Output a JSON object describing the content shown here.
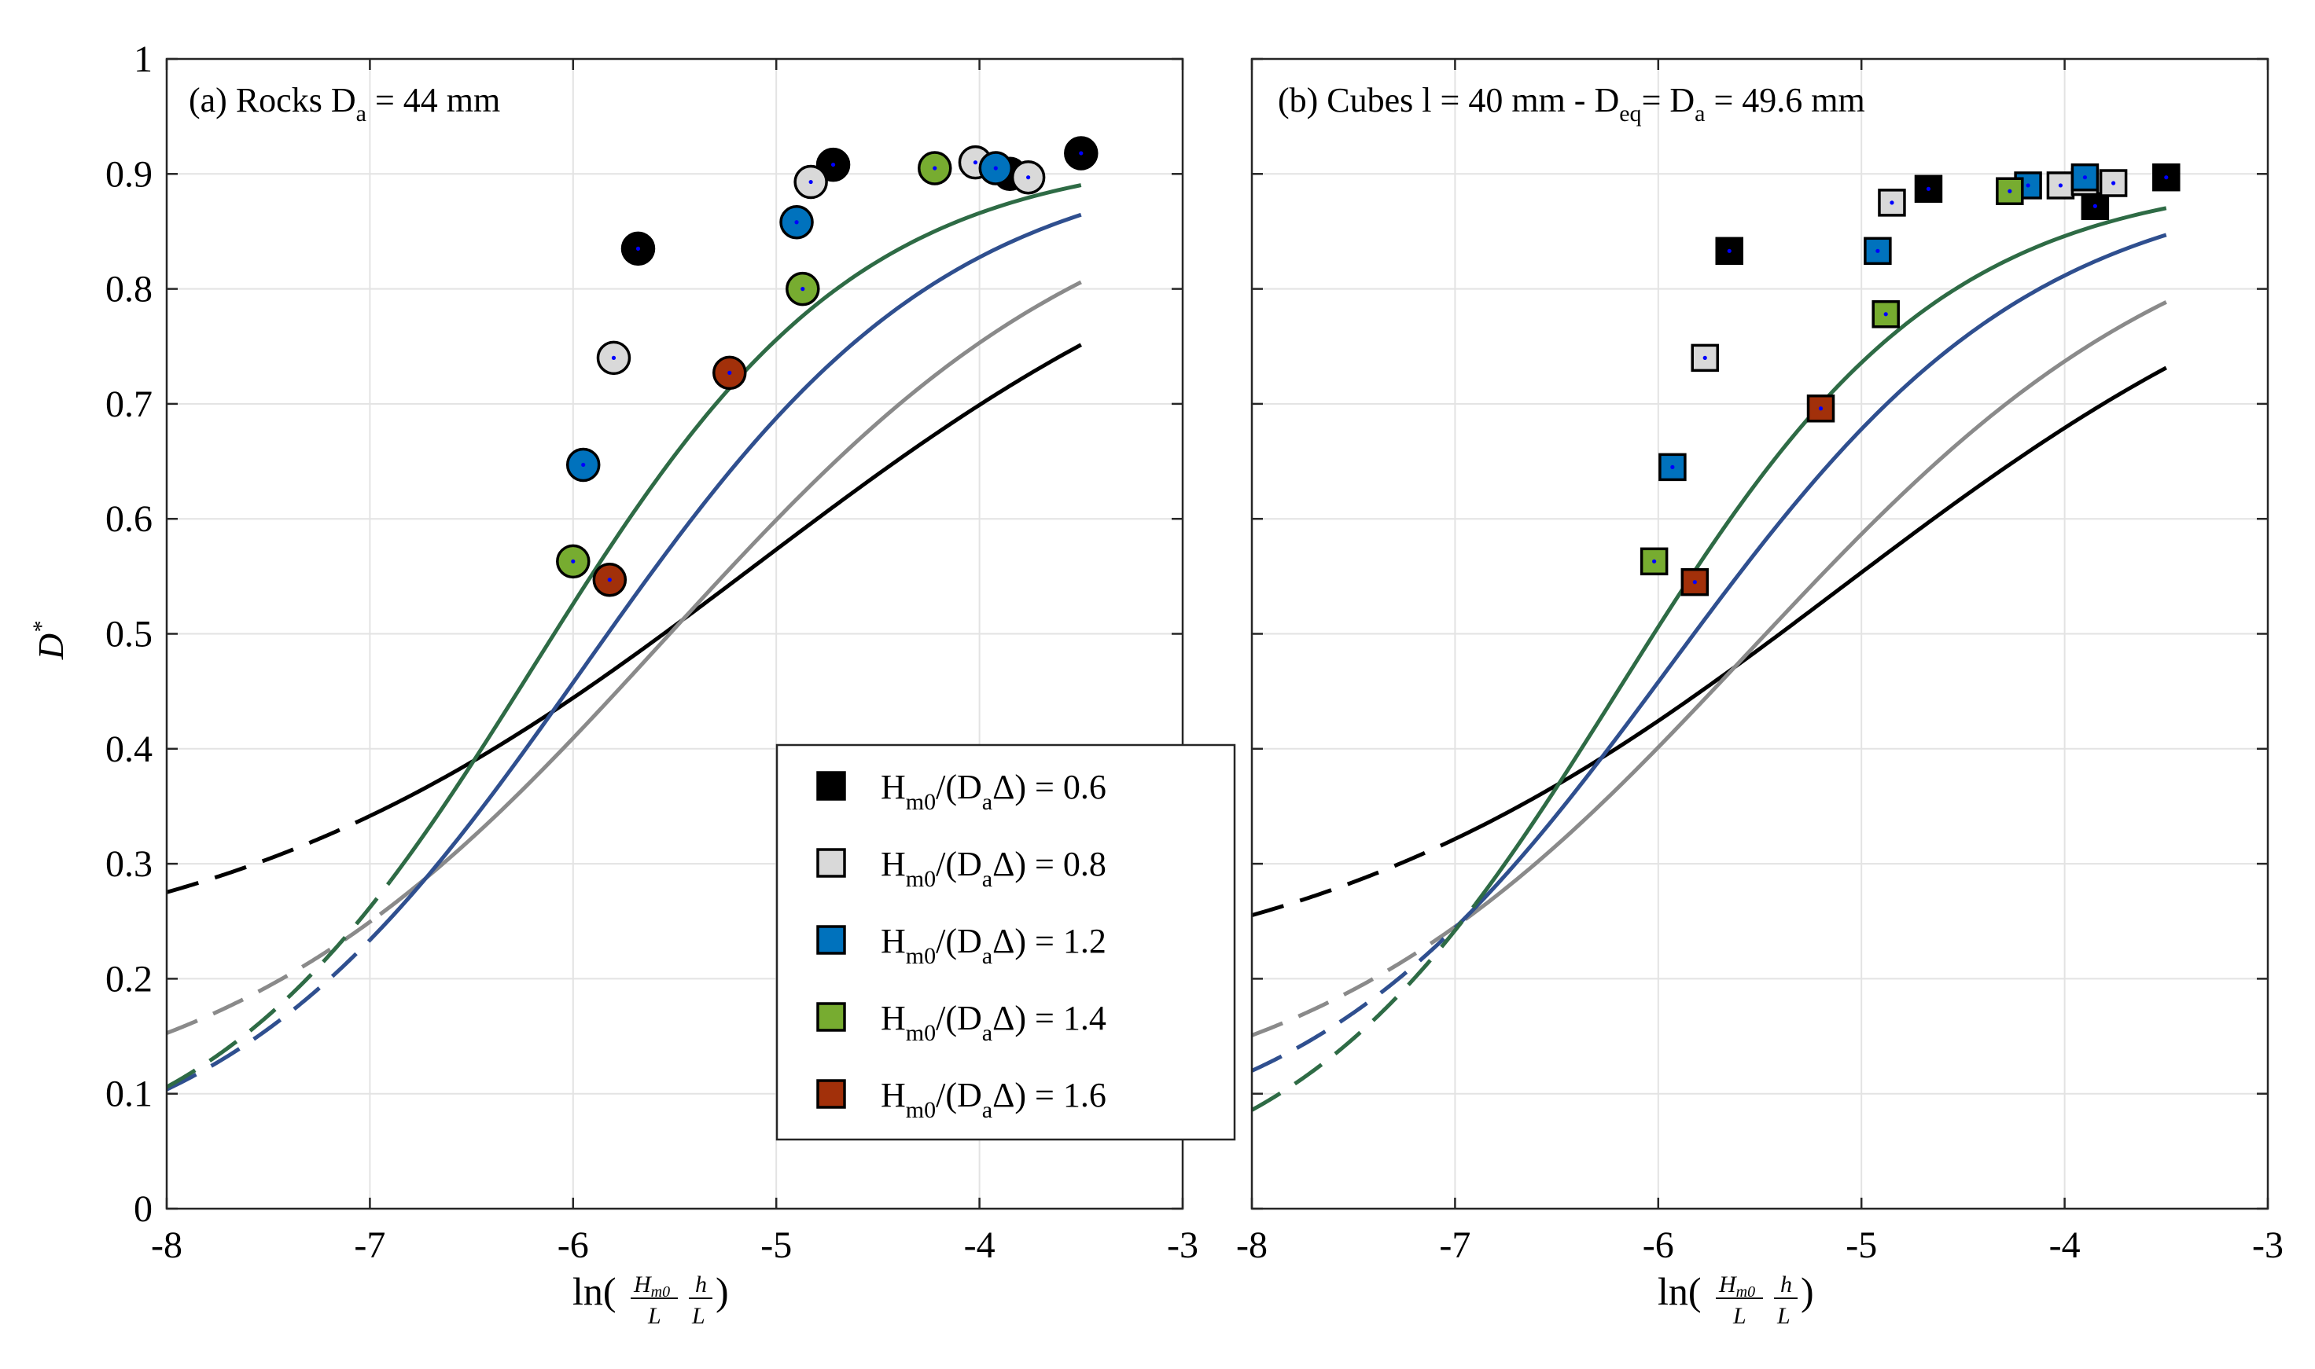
{
  "chart_data": [
    {
      "type": "scatter",
      "panel_id": "a",
      "title": {
        "prefix": "(a) Rocks D",
        "sub": "a",
        "suffix": " = 44 mm"
      },
      "xlabel": "ln(Hm0/L · h/L)",
      "ylabel": "D*",
      "xlim": [
        -8,
        -3
      ],
      "ylim": [
        0,
        1
      ],
      "xticks": [
        -8,
        -7,
        -6,
        -5,
        -4,
        -3
      ],
      "yticks": [
        0,
        0.1,
        0.2,
        0.3,
        0.4,
        0.5,
        0.6,
        0.7,
        0.8,
        0.9,
        1
      ],
      "grid": true,
      "marker": "circle",
      "series": [
        {
          "key": "s06",
          "name": "Hm0/(DaΔ) = 0.6",
          "x": [
            -5.68,
            -4.72,
            -3.85,
            -3.5
          ],
          "y": [
            0.835,
            0.908,
            0.9,
            0.918
          ],
          "curve": {
            "a": 0.92,
            "b": 0.72,
            "c": 5.1,
            "w": 1.35,
            "solid_from": -7.0
          }
        },
        {
          "key": "s08",
          "name": "Hm0/(DaΔ) = 0.8",
          "x": [
            -5.8,
            -4.83,
            -4.02,
            -3.76
          ],
          "y": [
            0.74,
            0.893,
            0.91,
            0.897
          ],
          "curve": {
            "a": 0.92,
            "b": 0.85,
            "c": 5.55,
            "w": 1.1,
            "solid_from": -6.95
          }
        },
        {
          "key": "s12",
          "name": "Hm0/(DaΔ) = 1.2",
          "x": [
            -5.95,
            -4.9,
            -3.92
          ],
          "y": [
            0.647,
            0.858,
            0.905
          ],
          "curve": {
            "a": 0.92,
            "b": 0.9,
            "c": 5.95,
            "w": 0.9,
            "solid_from": -7.0
          }
        },
        {
          "key": "s14",
          "name": "Hm0/(DaΔ) = 1.4",
          "x": [
            -6.0,
            -4.87,
            -4.22
          ],
          "y": [
            0.563,
            0.8,
            0.905
          ],
          "curve": {
            "a": 0.92,
            "b": 0.9,
            "c": 6.2,
            "w": 0.8,
            "solid_from": -6.9
          }
        },
        {
          "key": "s16",
          "name": "Hm0/(DaΔ) = 1.6",
          "x": [
            -5.82,
            -5.23
          ],
          "y": [
            0.547,
            0.727
          ],
          "curve": null
        }
      ]
    },
    {
      "type": "scatter",
      "panel_id": "b",
      "title": {
        "prefix": "(b) Cubes l = 40 mm - D",
        "sub1": "eq",
        "mid": "= D",
        "sub2": "a",
        "suffix": " = 49.6 mm"
      },
      "xlabel": "ln(Hm0/L · h/L)",
      "ylabel": "",
      "xlim": [
        -8,
        -3
      ],
      "ylim": [
        0,
        1
      ],
      "xticks": [
        -8,
        -7,
        -6,
        -5,
        -4,
        -3
      ],
      "yticks": [
        0,
        0.1,
        0.2,
        0.3,
        0.4,
        0.5,
        0.6,
        0.7,
        0.8,
        0.9,
        1
      ],
      "grid": true,
      "marker": "square",
      "series": [
        {
          "key": "s06",
          "name": "Hm0/(DaΔ) = 0.6",
          "x": [
            -5.65,
            -4.67,
            -3.85,
            -3.5
          ],
          "y": [
            0.833,
            0.887,
            0.872,
            0.897
          ],
          "curve": {
            "a": 0.9,
            "b": 0.72,
            "c": 5.1,
            "w": 1.35,
            "solid_from": -7.0
          }
        },
        {
          "key": "s08",
          "name": "Hm0/(DaΔ) = 0.8",
          "x": [
            -5.77,
            -4.85,
            -4.02,
            -3.9,
            -3.76
          ],
          "y": [
            0.74,
            0.875,
            0.89,
            0.893,
            0.892
          ],
          "curve": {
            "a": 0.9,
            "b": 0.83,
            "c": 5.55,
            "w": 1.1,
            "solid_from": -6.95
          }
        },
        {
          "key": "s12",
          "name": "Hm0/(DaΔ) = 1.2",
          "x": [
            -5.93,
            -4.92,
            -4.18,
            -3.9
          ],
          "y": [
            0.645,
            0.833,
            0.89,
            0.897
          ],
          "curve": {
            "a": 0.9,
            "b": 0.86,
            "c": 5.95,
            "w": 0.9,
            "solid_from": -7.0
          }
        },
        {
          "key": "s14",
          "name": "Hm0/(DaΔ) = 1.4",
          "x": [
            -6.02,
            -4.88,
            -4.27
          ],
          "y": [
            0.563,
            0.778,
            0.885
          ],
          "curve": {
            "a": 0.9,
            "b": 0.9,
            "c": 6.2,
            "w": 0.8,
            "solid_from": -6.9
          }
        },
        {
          "key": "s16",
          "name": "Hm0/(DaΔ) = 1.6",
          "x": [
            -5.82,
            -5.2
          ],
          "y": [
            0.545,
            0.696
          ],
          "curve": null
        }
      ]
    }
  ],
  "colors": {
    "s06": {
      "fill": "#000000",
      "line": "#000000"
    },
    "s08": {
      "fill": "#d9d9d9",
      "line": "#8a8a8a"
    },
    "s12": {
      "fill": "#0072bd",
      "line": "#2f4f8f"
    },
    "s14": {
      "fill": "#77ac30",
      "line": "#2e6b45"
    },
    "s16": {
      "fill": "#a2300a",
      "line": "#a2300a"
    },
    "grid": "#e3e3e3",
    "center_dot": "#0000ff"
  },
  "legend": {
    "entries": [
      {
        "key": "s06",
        "main": "H",
        "sub1": "m0",
        "mid": "/(D",
        "sub2": "a",
        "tail": "Δ)  =  0.6"
      },
      {
        "key": "s08",
        "main": "H",
        "sub1": "m0",
        "mid": "/(D",
        "sub2": "a",
        "tail": "Δ)  =  0.8"
      },
      {
        "key": "s12",
        "main": "H",
        "sub1": "m0",
        "mid": "/(D",
        "sub2": "a",
        "tail": "Δ)  =  1.2"
      },
      {
        "key": "s14",
        "main": "H",
        "sub1": "m0",
        "mid": "/(D",
        "sub2": "a",
        "tail": "Δ)  =  1.4"
      },
      {
        "key": "s16",
        "main": "H",
        "sub1": "m0",
        "mid": "/(D",
        "sub2": "a",
        "tail": "Δ)  =  1.6"
      }
    ]
  },
  "xlabel_parts": {
    "ln": "ln(",
    "num1": "H",
    "num1_sub": "m0",
    "den1": "L",
    "num2": "h",
    "den2": "L",
    "close": ")"
  },
  "ylabel_parts": {
    "main": "D",
    "sup": "*"
  }
}
